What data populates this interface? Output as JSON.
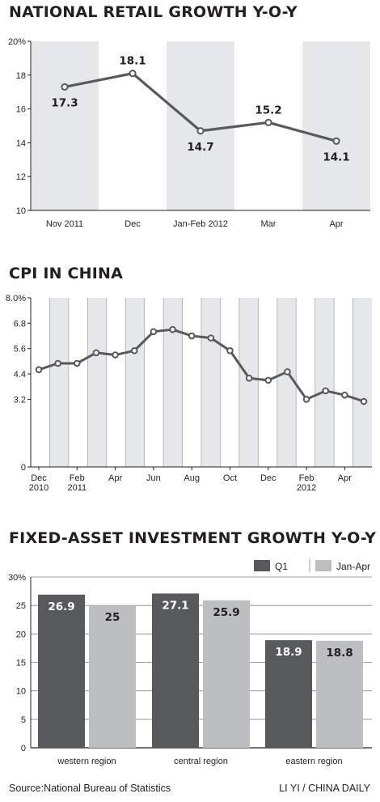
{
  "charts": {
    "retail": {
      "title": "NATIONAL RETAIL GROWTH Y-O-Y",
      "chart_data": {
        "type": "line",
        "categories": [
          "Nov 2011",
          "Dec",
          "Jan-Feb 2012",
          "Mar",
          "Apr"
        ],
        "values": [
          17.3,
          18.1,
          14.7,
          15.2,
          14.1
        ],
        "data_labels": [
          "17.3",
          "18.1",
          "14.7",
          "15.2",
          "14.1"
        ],
        "yticks": [
          "10",
          "12",
          "14",
          "16",
          "18",
          "20%"
        ],
        "ylim": [
          10,
          20
        ],
        "line_color": "#58595b",
        "band_color": "#e6e7e8"
      }
    },
    "cpi": {
      "title": "CPI IN CHINA",
      "chart_data": {
        "type": "line",
        "x": [
          "Dec 2010",
          "Jan 2011",
          "Feb 2011",
          "Mar 2011",
          "Apr 2011",
          "May 2011",
          "Jun 2011",
          "Jul 2011",
          "Aug 2011",
          "Sep 2011",
          "Oct 2011",
          "Nov 2011",
          "Dec 2011",
          "Jan 2012",
          "Feb 2012",
          "Mar 2012",
          "Apr 2012",
          "May 2012"
        ],
        "values": [
          4.6,
          4.9,
          4.9,
          5.4,
          5.3,
          5.5,
          6.4,
          6.5,
          6.2,
          6.1,
          5.5,
          4.2,
          4.1,
          4.5,
          3.2,
          3.6,
          3.4,
          3.1
        ],
        "xtick_labels": [
          {
            "index": 0,
            "lines": [
              "Dec",
              "2010"
            ]
          },
          {
            "index": 2,
            "lines": [
              "Feb",
              "2011"
            ]
          },
          {
            "index": 4,
            "lines": [
              "Apr",
              ""
            ]
          },
          {
            "index": 6,
            "lines": [
              "Jun",
              ""
            ]
          },
          {
            "index": 8,
            "lines": [
              "Aug",
              ""
            ]
          },
          {
            "index": 10,
            "lines": [
              "Oct",
              ""
            ]
          },
          {
            "index": 12,
            "lines": [
              "Dec",
              ""
            ]
          },
          {
            "index": 14,
            "lines": [
              "Feb",
              "2012"
            ]
          },
          {
            "index": 16,
            "lines": [
              "Apr",
              ""
            ]
          }
        ],
        "yticks": [
          "0",
          "3.2",
          "4.4",
          "5.6",
          "6.8",
          "8.0%"
        ],
        "ytick_values": [
          0,
          3.2,
          4.4,
          5.6,
          6.8,
          8.0
        ],
        "ylim": [
          0,
          8.0
        ],
        "line_color": "#58595b",
        "band_color": "#e6e7e8"
      }
    },
    "fai": {
      "title": "FIXED-ASSET INVESTMENT GROWTH Y-O-Y",
      "chart_data": {
        "type": "bar",
        "categories": [
          "western region",
          "central region",
          "eastern region"
        ],
        "series": [
          {
            "name": "Q1",
            "values": [
              26.9,
              27.1,
              18.9
            ],
            "labels": [
              "26.9",
              "27.1",
              "18.9"
            ],
            "color": "#58595b"
          },
          {
            "name": "Jan-Apr",
            "values": [
              25,
              25.9,
              18.8
            ],
            "labels": [
              "25",
              "25.9",
              "18.8"
            ],
            "color": "#bcbec0"
          }
        ],
        "yticks": [
          "0",
          "5",
          "10",
          "15",
          "20",
          "25",
          "30%"
        ],
        "ylim": [
          0,
          30
        ],
        "legend_position": "top-right"
      }
    }
  },
  "footer": {
    "source": "Source:National Bureau of Statistics",
    "credit": "LI YI / CHINA DAILY"
  }
}
